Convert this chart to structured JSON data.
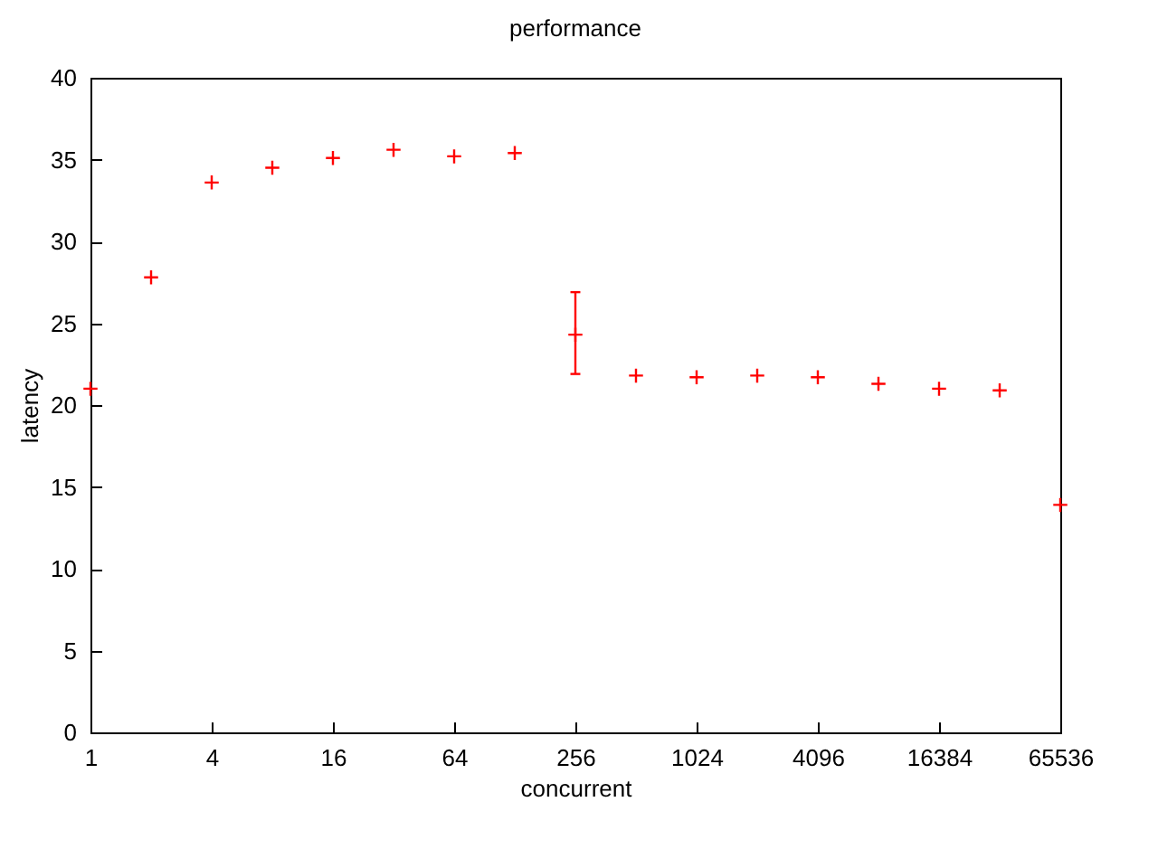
{
  "chart_data": {
    "type": "scatter",
    "title": "performance",
    "xlabel": "concurrent",
    "ylabel": "latency",
    "log": "x",
    "marker": "cross",
    "grid": false,
    "x": [
      1,
      2,
      4,
      8,
      16,
      32,
      64,
      128,
      256,
      512,
      1024,
      2048,
      4096,
      8192,
      16384,
      32768,
      65536
    ],
    "series": [
      {
        "color": "#ff0000",
        "values": [
          21.0,
          27.8,
          33.6,
          34.5,
          35.1,
          35.6,
          35.2,
          35.4,
          24.3,
          21.8,
          21.7,
          21.8,
          21.7,
          21.3,
          21.0,
          20.9,
          13.9
        ],
        "errors": [
          null,
          null,
          null,
          null,
          null,
          null,
          null,
          null,
          [
            21.9,
            26.9
          ],
          null,
          null,
          null,
          null,
          null,
          null,
          null,
          null
        ]
      }
    ],
    "xlim": [
      1,
      65536
    ],
    "xticks": [
      1,
      4,
      16,
      64,
      256,
      1024,
      4096,
      16384,
      65536
    ],
    "ylim": [
      0,
      40
    ],
    "yticks": [
      0,
      5,
      10,
      15,
      20,
      25,
      30,
      35,
      40
    ]
  }
}
